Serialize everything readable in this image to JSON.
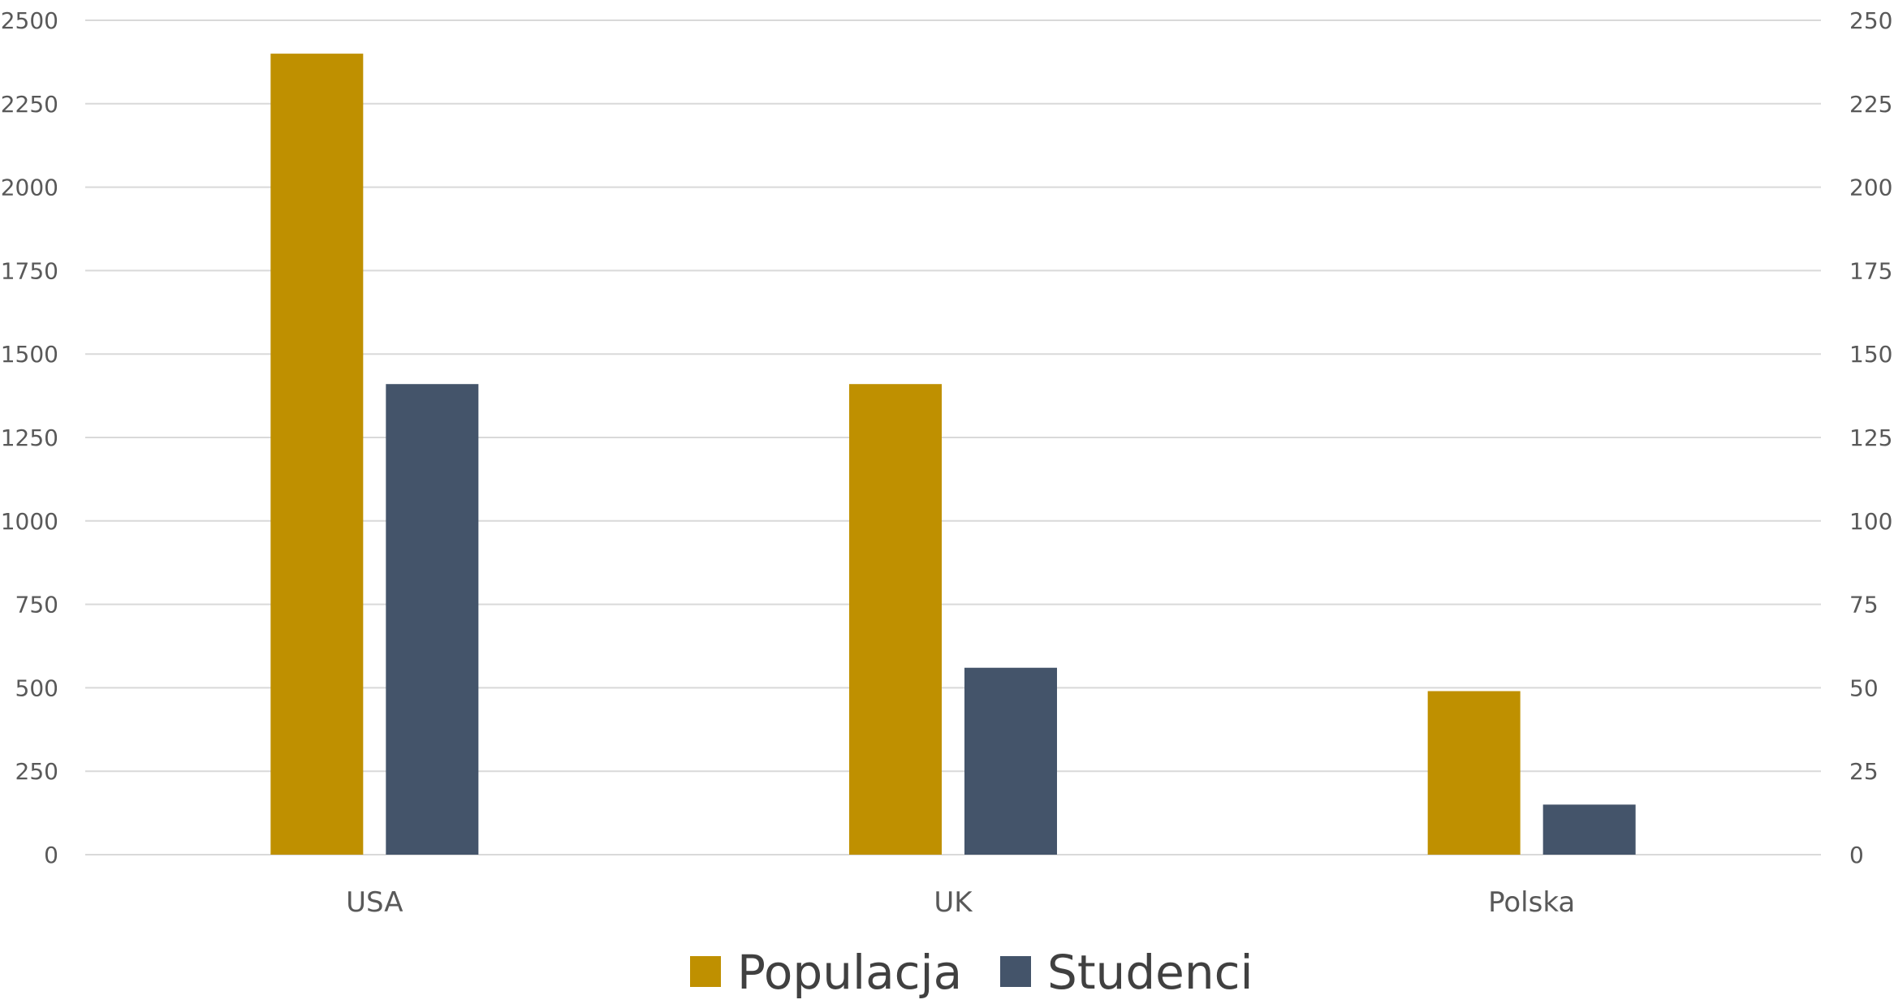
{
  "chart_data": {
    "type": "bar",
    "categories": [
      "USA",
      "UK",
      "Polska"
    ],
    "series": [
      {
        "name": "Populacja",
        "axis": "left",
        "color": "#BF9000",
        "values": [
          2400,
          1410,
          490
        ]
      },
      {
        "name": "Studenci",
        "axis": "right",
        "color": "#44546A",
        "values": [
          141,
          56,
          15
        ]
      }
    ],
    "y_left": {
      "min": 0,
      "max": 2500,
      "step": 250
    },
    "y_right": {
      "min": 0,
      "max": 250,
      "step": 25
    },
    "grid": true,
    "legend_position": "bottom",
    "colors": {
      "gridline": "#D9D9D9",
      "text": "#595959"
    }
  }
}
